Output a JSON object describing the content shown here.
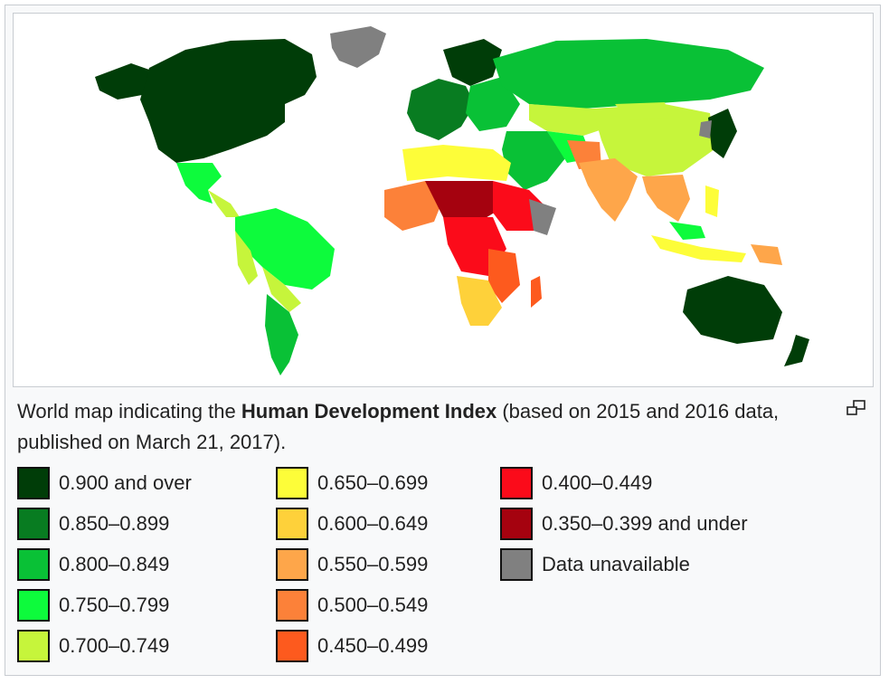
{
  "caption": {
    "prefix": "World map indicating the ",
    "bold": "Human Development Index",
    "suffix": " (based on 2015 and 2016 data, published on March 21, 2017)."
  },
  "icons": {
    "enlarge": "magnify-clip-icon"
  },
  "legend": {
    "columns": [
      [
        {
          "label": "0.900 and over",
          "color": "#003d08"
        },
        {
          "label": "0.850–0.899",
          "color": "#087c21"
        },
        {
          "label": "0.800–0.849",
          "color": "#09c136"
        },
        {
          "label": "0.750–0.799",
          "color": "#0dfb3c"
        },
        {
          "label": "0.700–0.749",
          "color": "#c6f53b"
        }
      ],
      [
        {
          "label": "0.650–0.699",
          "color": "#fdfd39"
        },
        {
          "label": "0.600–0.649",
          "color": "#fed13a"
        },
        {
          "label": "0.550–0.599",
          "color": "#fea64a"
        },
        {
          "label": "0.500–0.549",
          "color": "#fc8139"
        },
        {
          "label": "0.450–0.499",
          "color": "#fd5a1e"
        }
      ],
      [
        {
          "label": "0.400–0.449",
          "color": "#fb0b1a"
        },
        {
          "label": "0.350–0.399 and under",
          "color": "#a5020f"
        },
        {
          "label": "Data unavailable",
          "color": "#808080"
        }
      ]
    ]
  }
}
